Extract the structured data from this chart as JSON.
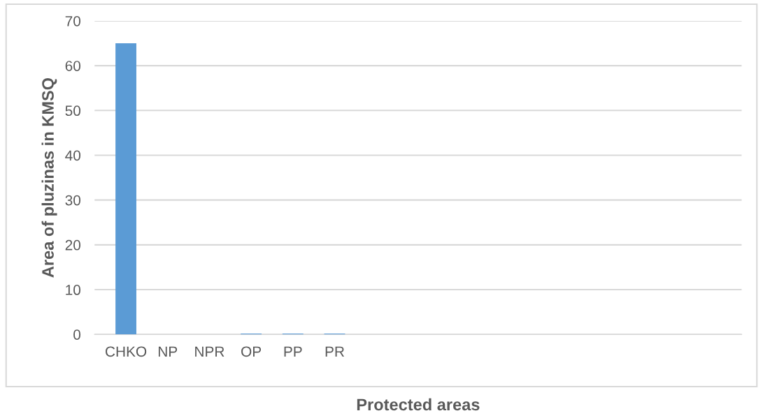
{
  "chart_data": {
    "type": "bar",
    "xlabel": "Protected areas",
    "ylabel": "Area of pluzinas in KMSQ",
    "categories": [
      "CHKO",
      "NP",
      "NPR",
      "OP",
      "PP",
      "PR",
      null,
      null,
      null,
      null,
      null,
      null,
      null,
      null,
      null
    ],
    "values": [
      65,
      0,
      0,
      0.2,
      0.2,
      0.2,
      null,
      null,
      null,
      null,
      null,
      null,
      null,
      null,
      null
    ],
    "color": "#5b9bd5",
    "ylim": [
      0,
      70
    ],
    "yticks": [
      0,
      10,
      20,
      30,
      40,
      50,
      60,
      70
    ],
    "grid": "y",
    "legend": false
  }
}
